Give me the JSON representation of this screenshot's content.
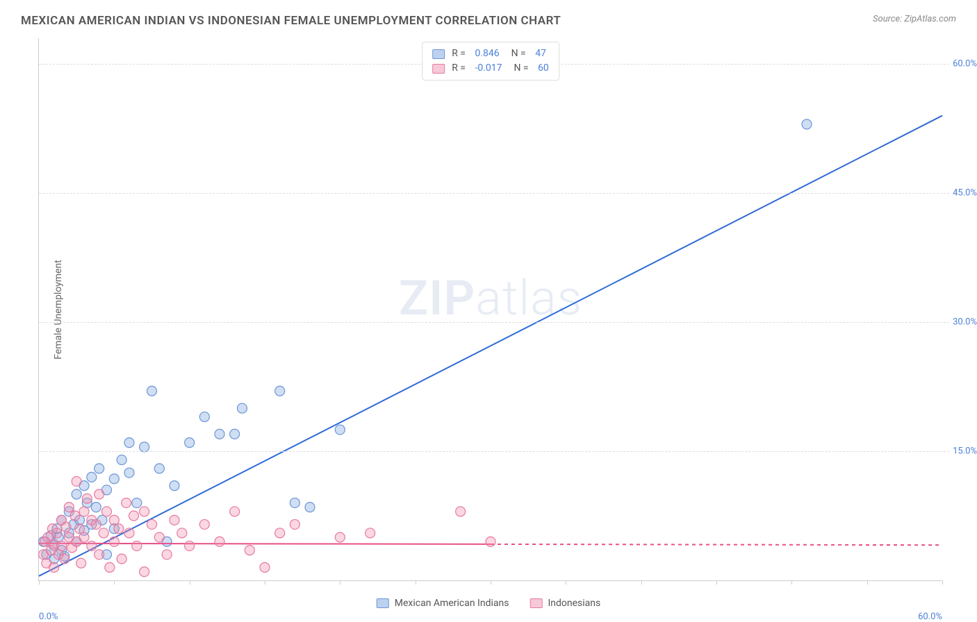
{
  "header": {
    "title": "MEXICAN AMERICAN INDIAN VS INDONESIAN FEMALE UNEMPLOYMENT CORRELATION CHART",
    "source": "Source: ZipAtlas.com"
  },
  "ylabel": "Female Unemployment",
  "watermark_a": "ZIP",
  "watermark_b": "atlas",
  "chart": {
    "type": "scatter-with-regression",
    "xlim": [
      0,
      60
    ],
    "ylim": [
      0,
      63
    ],
    "xtick_positions": [
      0,
      5,
      10,
      15,
      20,
      25,
      30,
      35,
      40,
      45,
      50,
      55,
      60
    ],
    "xtick_labels": {
      "0": "0.0%",
      "60": "60.0%"
    },
    "ytick_positions": [
      15,
      30,
      45,
      60
    ],
    "ytick_labels": [
      "15.0%",
      "30.0%",
      "45.0%",
      "60.0%"
    ],
    "background_color": "#ffffff",
    "grid_color": "#dddddd",
    "marker_radius": 7,
    "marker_stroke_width": 1.2,
    "series": [
      {
        "name": "Mexican American Indians",
        "color_fill": "rgba(120,160,220,0.35)",
        "color_stroke": "#6a96d8",
        "swatch_fill": "#bcd1f0",
        "swatch_border": "#6a96d8",
        "r_label": "R =",
        "r_value": "0.846",
        "n_label": "N =",
        "n_value": "47",
        "regression": {
          "x1": 0,
          "y1": 0.5,
          "x2": 60,
          "y2": 54,
          "solid_until_x": 60,
          "color": "#2e6bd6",
          "width": 2
        },
        "points": [
          [
            0.3,
            4.5
          ],
          [
            0.5,
            3
          ],
          [
            0.8,
            5.2
          ],
          [
            1,
            4
          ],
          [
            1,
            2.5
          ],
          [
            1.2,
            6
          ],
          [
            1.3,
            5
          ],
          [
            1.5,
            3.5
          ],
          [
            1.5,
            7
          ],
          [
            1.7,
            2.8
          ],
          [
            2,
            5.5
          ],
          [
            2,
            8
          ],
          [
            2.3,
            6.5
          ],
          [
            2.5,
            10
          ],
          [
            2.5,
            4.5
          ],
          [
            2.7,
            7
          ],
          [
            3,
            5.8
          ],
          [
            3,
            11
          ],
          [
            3.2,
            9
          ],
          [
            3.5,
            12
          ],
          [
            3.5,
            6.5
          ],
          [
            3.8,
            8.5
          ],
          [
            4,
            13
          ],
          [
            4.2,
            7
          ],
          [
            4.5,
            10.5
          ],
          [
            4.5,
            3
          ],
          [
            5,
            11.8
          ],
          [
            5,
            6
          ],
          [
            5.5,
            14
          ],
          [
            6,
            12.5
          ],
          [
            6,
            16
          ],
          [
            6.5,
            9
          ],
          [
            7,
            15.5
          ],
          [
            7.5,
            22
          ],
          [
            8,
            13
          ],
          [
            8.5,
            4.5
          ],
          [
            9,
            11
          ],
          [
            10,
            16
          ],
          [
            11,
            19
          ],
          [
            12,
            17
          ],
          [
            13,
            17
          ],
          [
            13.5,
            20
          ],
          [
            16,
            22
          ],
          [
            17,
            9
          ],
          [
            18,
            8.5
          ],
          [
            20,
            17.5
          ],
          [
            51,
            53
          ]
        ]
      },
      {
        "name": "Indonesians",
        "color_fill": "rgba(240,140,170,0.35)",
        "color_stroke": "#e67aa0",
        "swatch_fill": "#f6c8d8",
        "swatch_border": "#e67aa0",
        "r_label": "R =",
        "r_value": "-0.017",
        "n_label": "N =",
        "n_value": "60",
        "regression": {
          "x1": 0,
          "y1": 4.3,
          "x2": 60,
          "y2": 4.1,
          "solid_until_x": 30,
          "color": "#e84f87",
          "width": 2
        },
        "points": [
          [
            0.3,
            3
          ],
          [
            0.4,
            4.5
          ],
          [
            0.5,
            2
          ],
          [
            0.6,
            5
          ],
          [
            0.8,
            3.5
          ],
          [
            0.9,
            6
          ],
          [
            1,
            4.2
          ],
          [
            1,
            1.5
          ],
          [
            1.2,
            5.5
          ],
          [
            1.3,
            3
          ],
          [
            1.5,
            7
          ],
          [
            1.5,
            4
          ],
          [
            1.7,
            2.5
          ],
          [
            1.8,
            6.2
          ],
          [
            2,
            5
          ],
          [
            2,
            8.5
          ],
          [
            2.2,
            3.8
          ],
          [
            2.4,
            7.5
          ],
          [
            2.5,
            4.5
          ],
          [
            2.5,
            11.5
          ],
          [
            2.7,
            6
          ],
          [
            2.8,
            2
          ],
          [
            3,
            8
          ],
          [
            3,
            5
          ],
          [
            3.2,
            9.5
          ],
          [
            3.5,
            4
          ],
          [
            3.5,
            7
          ],
          [
            3.8,
            6.5
          ],
          [
            4,
            3
          ],
          [
            4,
            10
          ],
          [
            4.3,
            5.5
          ],
          [
            4.5,
            8
          ],
          [
            4.7,
            1.5
          ],
          [
            5,
            7
          ],
          [
            5,
            4.5
          ],
          [
            5.3,
            6
          ],
          [
            5.5,
            2.5
          ],
          [
            5.8,
            9
          ],
          [
            6,
            5.5
          ],
          [
            6.3,
            7.5
          ],
          [
            6.5,
            4
          ],
          [
            7,
            1
          ],
          [
            7,
            8
          ],
          [
            7.5,
            6.5
          ],
          [
            8,
            5
          ],
          [
            8.5,
            3
          ],
          [
            9,
            7
          ],
          [
            9.5,
            5.5
          ],
          [
            10,
            4
          ],
          [
            11,
            6.5
          ],
          [
            12,
            4.5
          ],
          [
            13,
            8
          ],
          [
            14,
            3.5
          ],
          [
            15,
            1.5
          ],
          [
            16,
            5.5
          ],
          [
            17,
            6.5
          ],
          [
            20,
            5
          ],
          [
            22,
            5.5
          ],
          [
            28,
            8
          ],
          [
            30,
            4.5
          ]
        ]
      }
    ]
  },
  "legend_top": {
    "rows": [
      0,
      1
    ]
  },
  "legend_bottom": {
    "items": [
      0,
      1
    ]
  }
}
